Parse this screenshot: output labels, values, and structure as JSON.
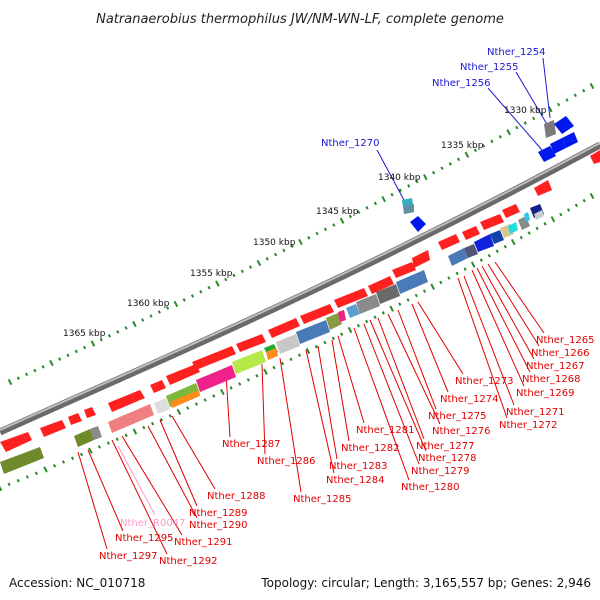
{
  "title": "Natranaerobius thermophilus JW/NM-WN-LF, complete genome",
  "footer": {
    "accession": "Accession: NC_010718",
    "topology": "Topology: circular; Length: 3,165,557 bp; Genes: 2,946"
  },
  "kbp_labels": [
    "1330 kbp",
    "1335 kbp",
    "1340 kbp",
    "1345 kbp",
    "1350 kbp",
    "1355 kbp",
    "1360 kbp",
    "1365 kbp"
  ],
  "gene_labels": {
    "blue": [
      "Nther_1254",
      "Nther_1255",
      "Nther_1256",
      "Nther_1270"
    ],
    "red": [
      "Nther_1265",
      "Nther_1266",
      "Nther_1267",
      "Nther_1268",
      "Nther_1269",
      "Nther_1271",
      "Nther_1272",
      "Nther_1273",
      "Nther_1274",
      "Nther_1275",
      "Nther_1276",
      "Nther_1277",
      "Nther_1278",
      "Nther_1279",
      "Nther_1280",
      "Nther_1281",
      "Nther_1282",
      "Nther_1283",
      "Nther_1284",
      "Nther_1285",
      "Nther_1286",
      "Nther_1287",
      "Nther_1288",
      "Nther_1289",
      "Nther_1290",
      "Nther_1291",
      "Nther_1292",
      "Nther_1295",
      "Nther_1297"
    ],
    "pink": [
      "Nther_R0047"
    ]
  },
  "colors": {
    "forward_cds": "#ff0000",
    "reverse_cds": "#0000ff",
    "rna": "#ff99bb",
    "backbone": "#808080",
    "ticks": "#2a8a2a"
  }
}
